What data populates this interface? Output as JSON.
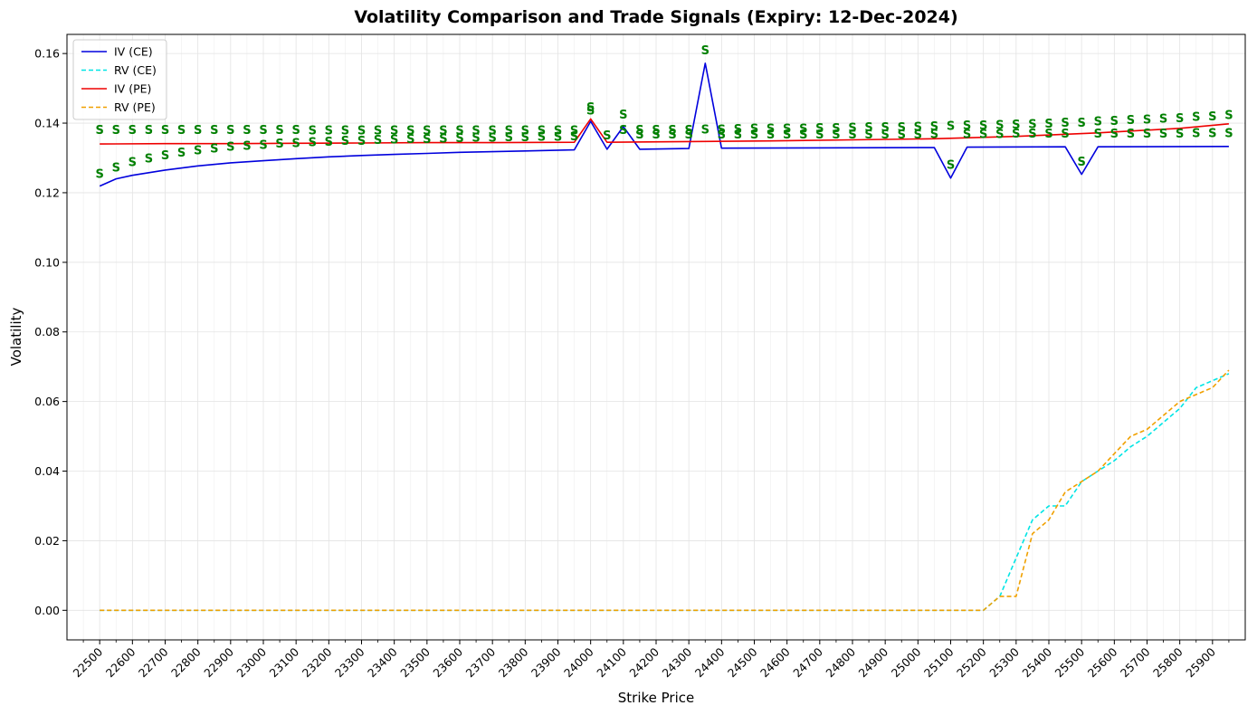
{
  "chart_data": {
    "type": "line",
    "title": "Volatility Comparison and Trade Signals (Expiry: 12-Dec-2024)",
    "xlabel": "Strike Price",
    "ylabel": "Volatility",
    "xlim": [
      22400,
      26000
    ],
    "ylim": [
      -0.0085,
      0.1655
    ],
    "grid": true,
    "legend_position": "top-left",
    "x_ticks": [
      22500,
      22600,
      22700,
      22800,
      22900,
      23000,
      23100,
      23200,
      23300,
      23400,
      23500,
      23600,
      23700,
      23800,
      23900,
      24000,
      24100,
      24200,
      24300,
      24400,
      24500,
      24600,
      24700,
      24800,
      24900,
      25000,
      25100,
      25200,
      25300,
      25400,
      25500,
      25600,
      25700,
      25800,
      25900
    ],
    "y_ticks": [
      0.0,
      0.02,
      0.04,
      0.06,
      0.08,
      0.1,
      0.12,
      0.14,
      0.16
    ],
    "y_tick_labels": [
      "0.00",
      "0.02",
      "0.04",
      "0.06",
      "0.08",
      "0.10",
      "0.12",
      "0.14",
      "0.16"
    ],
    "series": [
      {
        "name": "IV (CE)",
        "color": "#0000dd",
        "style": "solid",
        "x": [
          22500,
          22550,
          22600,
          22700,
          22800,
          22900,
          23000,
          23100,
          23200,
          23300,
          23400,
          23500,
          23600,
          23700,
          23800,
          23950,
          24000,
          24050,
          24100,
          24150,
          24300,
          24350,
          24400,
          25050,
          25100,
          25150,
          25450,
          25500,
          25550,
          25950
        ],
        "y": [
          0.1219,
          0.124,
          0.125,
          0.1265,
          0.1277,
          0.1286,
          0.1292,
          0.1298,
          0.1303,
          0.1307,
          0.131,
          0.1313,
          0.1316,
          0.1318,
          0.132,
          0.1323,
          0.1405,
          0.1325,
          0.139,
          0.1325,
          0.1327,
          0.1572,
          0.1328,
          0.133,
          0.1242,
          0.1331,
          0.1332,
          0.1253,
          0.1332,
          0.1333
        ]
      },
      {
        "name": "RV (CE)",
        "color": "#00e5e5",
        "style": "dashed",
        "x": [
          22500,
          25200,
          25250,
          25300,
          25350,
          25400,
          25450,
          25500,
          25550,
          25600,
          25650,
          25700,
          25750,
          25800,
          25850,
          25900,
          25950
        ],
        "y": [
          0,
          0,
          0.004,
          0.015,
          0.026,
          0.03,
          0.03,
          0.037,
          0.04,
          0.043,
          0.047,
          0.05,
          0.054,
          0.058,
          0.064,
          0.066,
          0.068
        ]
      },
      {
        "name": "IV (PE)",
        "color": "#ee0000",
        "style": "solid",
        "x": [
          22500,
          22700,
          22900,
          23100,
          23300,
          23500,
          23700,
          23950,
          24000,
          24050,
          24300,
          24550,
          24800,
          25050,
          25300,
          25550,
          25800,
          25950
        ],
        "y": [
          0.134,
          0.1341,
          0.1341,
          0.1342,
          0.1343,
          0.1344,
          0.1344,
          0.1345,
          0.1412,
          0.1345,
          0.1347,
          0.1349,
          0.1352,
          0.1355,
          0.1362,
          0.1372,
          0.1385,
          0.1398
        ]
      },
      {
        "name": "RV (PE)",
        "color": "#f0a000",
        "style": "dashed",
        "x": [
          22500,
          25200,
          25250,
          25300,
          25350,
          25400,
          25450,
          25500,
          25550,
          25600,
          25650,
          25700,
          25750,
          25800,
          25850,
          25900,
          25950
        ],
        "y": [
          0,
          0,
          0.004,
          0.004,
          0.022,
          0.026,
          0.034,
          0.037,
          0.04,
          0.045,
          0.05,
          0.052,
          0.056,
          0.06,
          0.062,
          0.064,
          0.069
        ]
      }
    ],
    "signal_label": "S",
    "signals": [
      {
        "x": 22500,
        "y": 0.1255
      },
      {
        "x": 22550,
        "y": 0.1273
      },
      {
        "x": 22600,
        "y": 0.1288
      },
      {
        "x": 22650,
        "y": 0.1299
      },
      {
        "x": 22700,
        "y": 0.1308
      },
      {
        "x": 22750,
        "y": 0.1316
      },
      {
        "x": 22800,
        "y": 0.1322
      },
      {
        "x": 22850,
        "y": 0.1327
      },
      {
        "x": 22900,
        "y": 0.1332
      },
      {
        "x": 22950,
        "y": 0.1335
      },
      {
        "x": 23000,
        "y": 0.1338
      },
      {
        "x": 23050,
        "y": 0.1341
      },
      {
        "x": 23100,
        "y": 0.1343
      },
      {
        "x": 23150,
        "y": 0.1345
      },
      {
        "x": 23200,
        "y": 0.1347
      },
      {
        "x": 23250,
        "y": 0.1349
      },
      {
        "x": 23300,
        "y": 0.135
      },
      {
        "x": 23350,
        "y": 0.1352
      },
      {
        "x": 23400,
        "y": 0.1353
      },
      {
        "x": 23450,
        "y": 0.1354
      },
      {
        "x": 23500,
        "y": 0.1355
      },
      {
        "x": 23550,
        "y": 0.1356
      },
      {
        "x": 23600,
        "y": 0.1357
      },
      {
        "x": 23650,
        "y": 0.1358
      },
      {
        "x": 23700,
        "y": 0.1359
      },
      {
        "x": 23750,
        "y": 0.136
      },
      {
        "x": 23800,
        "y": 0.136
      },
      {
        "x": 23850,
        "y": 0.1361
      },
      {
        "x": 23900,
        "y": 0.1361
      },
      {
        "x": 23950,
        "y": 0.1362
      },
      {
        "x": 22500,
        "y": 0.138
      },
      {
        "x": 22550,
        "y": 0.138
      },
      {
        "x": 22600,
        "y": 0.138
      },
      {
        "x": 22650,
        "y": 0.138
      },
      {
        "x": 22700,
        "y": 0.138
      },
      {
        "x": 22750,
        "y": 0.138
      },
      {
        "x": 22800,
        "y": 0.138
      },
      {
        "x": 22850,
        "y": 0.138
      },
      {
        "x": 22900,
        "y": 0.138
      },
      {
        "x": 22950,
        "y": 0.138
      },
      {
        "x": 23000,
        "y": 0.138
      },
      {
        "x": 23050,
        "y": 0.138
      },
      {
        "x": 23100,
        "y": 0.138
      },
      {
        "x": 23150,
        "y": 0.1379
      },
      {
        "x": 23200,
        "y": 0.1379
      },
      {
        "x": 23250,
        "y": 0.1379
      },
      {
        "x": 23300,
        "y": 0.1379
      },
      {
        "x": 23350,
        "y": 0.1379
      },
      {
        "x": 23400,
        "y": 0.1379
      },
      {
        "x": 23450,
        "y": 0.1379
      },
      {
        "x": 23500,
        "y": 0.1379
      },
      {
        "x": 23550,
        "y": 0.1379
      },
      {
        "x": 23600,
        "y": 0.1379
      },
      {
        "x": 23650,
        "y": 0.1379
      },
      {
        "x": 23700,
        "y": 0.1379
      },
      {
        "x": 23750,
        "y": 0.1379
      },
      {
        "x": 23800,
        "y": 0.1379
      },
      {
        "x": 23850,
        "y": 0.1379
      },
      {
        "x": 23900,
        "y": 0.1379
      },
      {
        "x": 23950,
        "y": 0.1379
      },
      {
        "x": 24000,
        "y": 0.1437
      },
      {
        "x": 24000,
        "y": 0.1445
      },
      {
        "x": 24050,
        "y": 0.1365
      },
      {
        "x": 24100,
        "y": 0.1425
      },
      {
        "x": 24100,
        "y": 0.138
      },
      {
        "x": 24150,
        "y": 0.1367
      },
      {
        "x": 24200,
        "y": 0.1367
      },
      {
        "x": 24250,
        "y": 0.1367
      },
      {
        "x": 24300,
        "y": 0.1367
      },
      {
        "x": 24350,
        "y": 0.161
      },
      {
        "x": 24350,
        "y": 0.1382
      },
      {
        "x": 24150,
        "y": 0.138
      },
      {
        "x": 24200,
        "y": 0.138
      },
      {
        "x": 24250,
        "y": 0.138
      },
      {
        "x": 24300,
        "y": 0.138
      },
      {
        "x": 24400,
        "y": 0.1368
      },
      {
        "x": 24450,
        "y": 0.1368
      },
      {
        "x": 24500,
        "y": 0.1368
      },
      {
        "x": 24550,
        "y": 0.1368
      },
      {
        "x": 24600,
        "y": 0.1368
      },
      {
        "x": 24650,
        "y": 0.1368
      },
      {
        "x": 24700,
        "y": 0.1368
      },
      {
        "x": 24750,
        "y": 0.1368
      },
      {
        "x": 24800,
        "y": 0.1368
      },
      {
        "x": 24850,
        "y": 0.1368
      },
      {
        "x": 24900,
        "y": 0.1368
      },
      {
        "x": 24950,
        "y": 0.1368
      },
      {
        "x": 25000,
        "y": 0.1368
      },
      {
        "x": 25050,
        "y": 0.1369
      },
      {
        "x": 24400,
        "y": 0.1382
      },
      {
        "x": 24450,
        "y": 0.1383
      },
      {
        "x": 24500,
        "y": 0.1384
      },
      {
        "x": 24550,
        "y": 0.1384
      },
      {
        "x": 24600,
        "y": 0.1385
      },
      {
        "x": 24650,
        "y": 0.1385
      },
      {
        "x": 24700,
        "y": 0.1386
      },
      {
        "x": 24750,
        "y": 0.1386
      },
      {
        "x": 24800,
        "y": 0.1387
      },
      {
        "x": 24850,
        "y": 0.1388
      },
      {
        "x": 24900,
        "y": 0.1388
      },
      {
        "x": 24950,
        "y": 0.1389
      },
      {
        "x": 25000,
        "y": 0.139
      },
      {
        "x": 25050,
        "y": 0.1391
      },
      {
        "x": 25100,
        "y": 0.128
      },
      {
        "x": 25100,
        "y": 0.1392
      },
      {
        "x": 25150,
        "y": 0.1369
      },
      {
        "x": 25150,
        "y": 0.1393
      },
      {
        "x": 25200,
        "y": 0.1369
      },
      {
        "x": 25200,
        "y": 0.1394
      },
      {
        "x": 25250,
        "y": 0.1369
      },
      {
        "x": 25250,
        "y": 0.1395
      },
      {
        "x": 25300,
        "y": 0.137
      },
      {
        "x": 25300,
        "y": 0.1396
      },
      {
        "x": 25350,
        "y": 0.137
      },
      {
        "x": 25350,
        "y": 0.1397
      },
      {
        "x": 25400,
        "y": 0.137
      },
      {
        "x": 25400,
        "y": 0.1399
      },
      {
        "x": 25450,
        "y": 0.137
      },
      {
        "x": 25450,
        "y": 0.1401
      },
      {
        "x": 25500,
        "y": 0.129
      },
      {
        "x": 25500,
        "y": 0.1402
      },
      {
        "x": 25550,
        "y": 0.137
      },
      {
        "x": 25550,
        "y": 0.1405
      },
      {
        "x": 25600,
        "y": 0.137
      },
      {
        "x": 25600,
        "y": 0.1407
      },
      {
        "x": 25650,
        "y": 0.137
      },
      {
        "x": 25650,
        "y": 0.1409
      },
      {
        "x": 25700,
        "y": 0.137
      },
      {
        "x": 25700,
        "y": 0.1411
      },
      {
        "x": 25750,
        "y": 0.137
      },
      {
        "x": 25750,
        "y": 0.1413
      },
      {
        "x": 25800,
        "y": 0.137
      },
      {
        "x": 25800,
        "y": 0.1415
      },
      {
        "x": 25850,
        "y": 0.1371
      },
      {
        "x": 25850,
        "y": 0.1418
      },
      {
        "x": 25900,
        "y": 0.1371
      },
      {
        "x": 25900,
        "y": 0.142
      },
      {
        "x": 25950,
        "y": 0.1371
      },
      {
        "x": 25950,
        "y": 0.1423
      }
    ],
    "signal_color": "#008000"
  }
}
